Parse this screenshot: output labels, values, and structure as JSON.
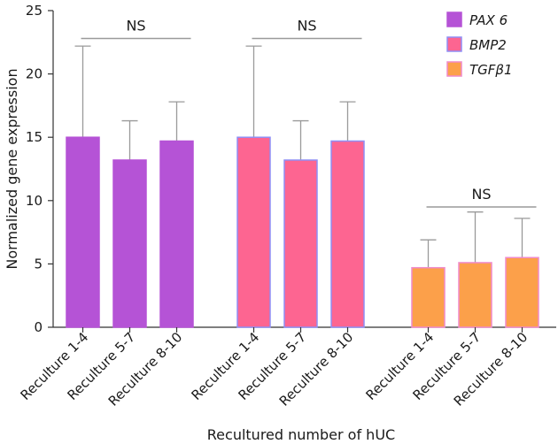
{
  "chart_data": {
    "type": "bar",
    "title": "",
    "xlabel": "Recultured number of hUC",
    "ylabel": "Normalized gene expression",
    "ylim": [
      0,
      25
    ],
    "yticks": [
      0,
      5,
      10,
      15,
      20,
      25
    ],
    "grid": false,
    "legend_position": "top-right",
    "error_bars": "upper only",
    "categories": [
      "Reculture 1-4",
      "Reculture 5-7",
      "Reculture 8-10"
    ],
    "series": [
      {
        "name": "PAX 6",
        "values": [
          15.0,
          13.2,
          14.7
        ],
        "errors": [
          7.2,
          3.1,
          3.1
        ],
        "color": "#b553d6",
        "edge": "#b553d6"
      },
      {
        "name": "BMP2",
        "values": [
          15.0,
          13.2,
          14.7
        ],
        "errors": [
          7.2,
          3.1,
          3.1
        ],
        "color": "#fd6591",
        "edge": "#8f8ff5"
      },
      {
        "name": "TGFβ1",
        "values": [
          4.7,
          5.1,
          5.5
        ],
        "errors": [
          2.2,
          4.0,
          3.1
        ],
        "color": "#fca04a",
        "edge": "#f08aca"
      }
    ],
    "annotations": [
      {
        "text": "NS",
        "series": 0,
        "bracket_y": 22.8
      },
      {
        "text": "NS",
        "series": 1,
        "bracket_y": 22.8
      },
      {
        "text": "NS",
        "series": 2,
        "bracket_y": 9.5
      }
    ]
  }
}
